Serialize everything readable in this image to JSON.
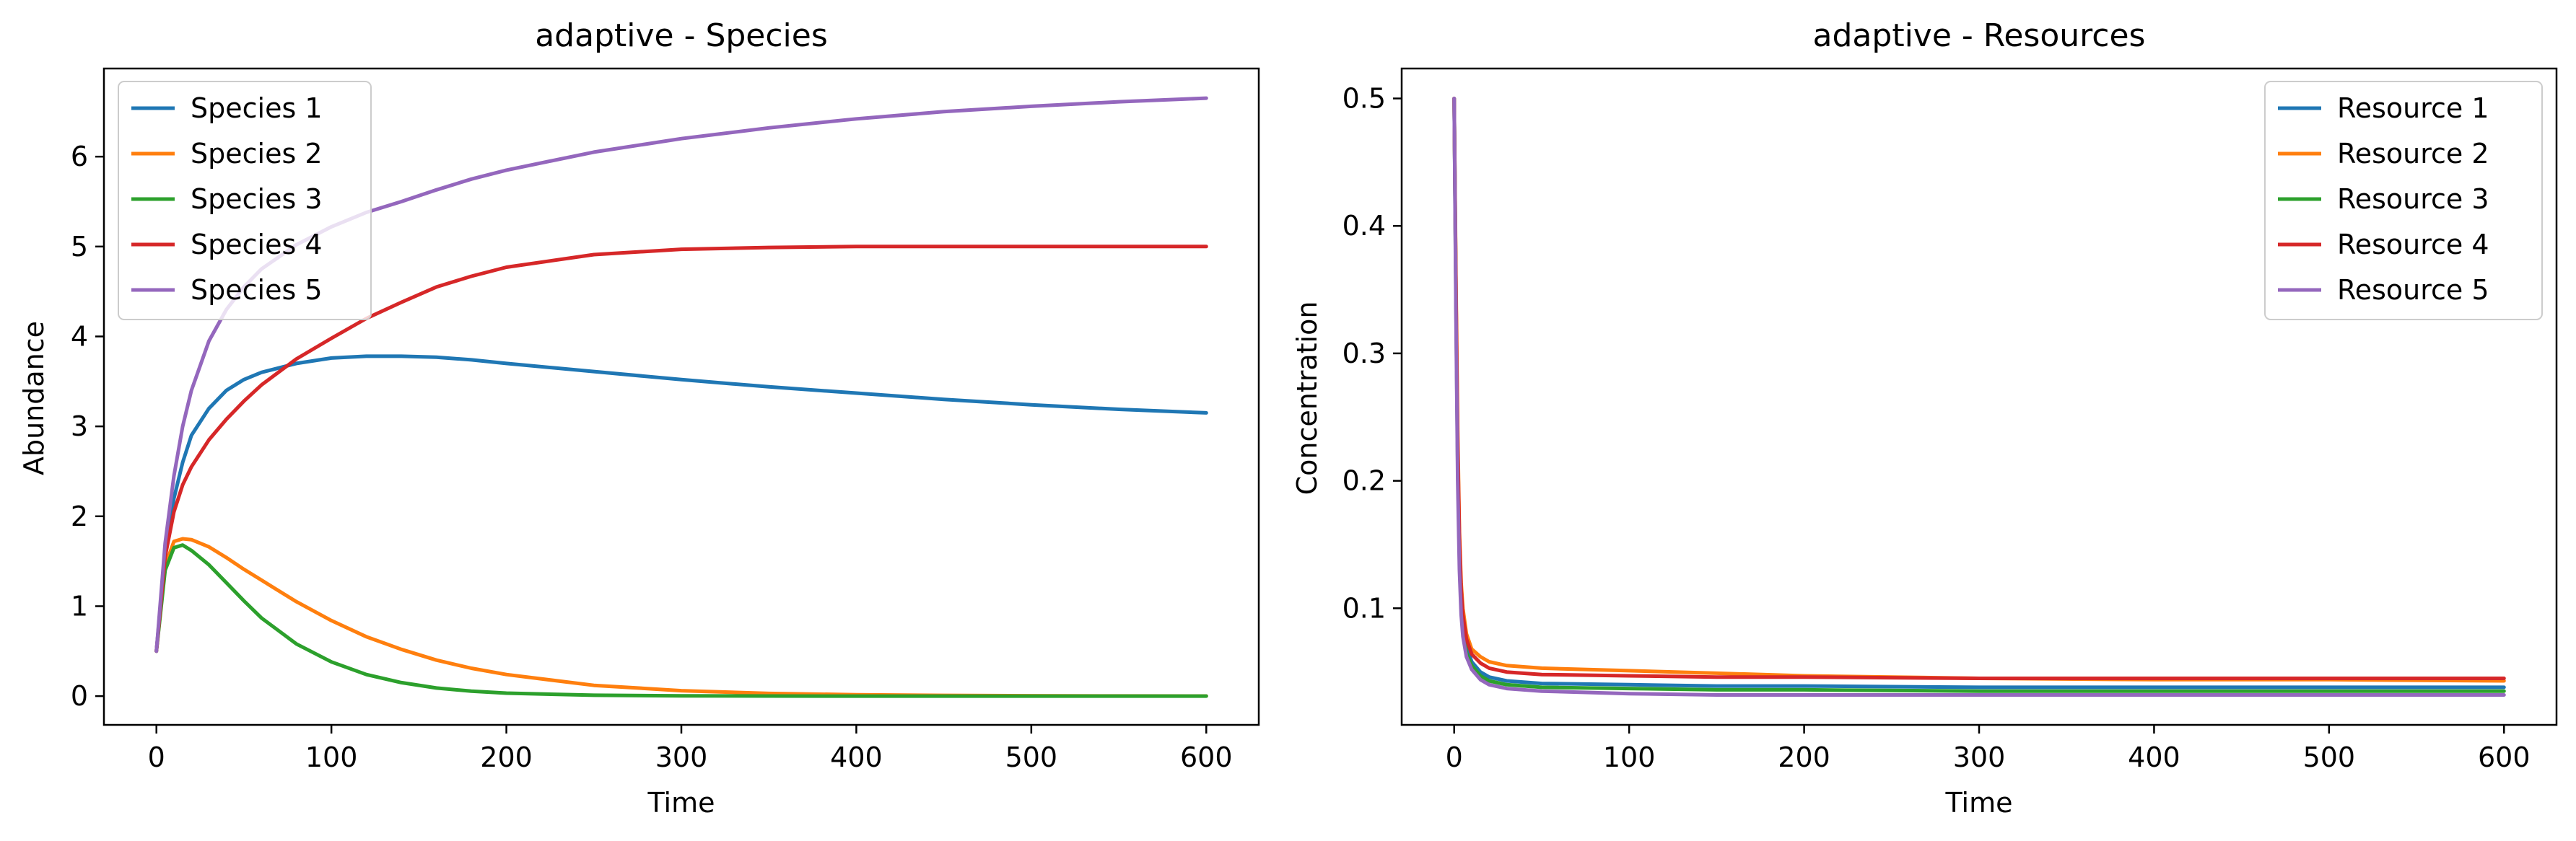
{
  "chart_data": [
    {
      "type": "line",
      "title": "adaptive - Species",
      "xlabel": "Time",
      "ylabel": "Abundance",
      "xlim": [
        -30,
        630
      ],
      "ylim": [
        -0.32,
        6.98
      ],
      "xticks": [
        0,
        100,
        200,
        300,
        400,
        500,
        600
      ],
      "yticks": [
        0,
        1,
        2,
        3,
        4,
        5,
        6
      ],
      "legend": "top-left",
      "grid": false,
      "x": [
        0,
        5,
        10,
        15,
        20,
        30,
        40,
        50,
        60,
        80,
        100,
        120,
        140,
        160,
        180,
        200,
        250,
        300,
        350,
        400,
        450,
        500,
        550,
        600
      ],
      "series": [
        {
          "name": "Species 1",
          "color": "#1f77b4",
          "values": [
            0.5,
            1.6,
            2.2,
            2.6,
            2.9,
            3.2,
            3.4,
            3.52,
            3.6,
            3.7,
            3.76,
            3.78,
            3.78,
            3.77,
            3.74,
            3.7,
            3.61,
            3.52,
            3.44,
            3.37,
            3.3,
            3.24,
            3.19,
            3.15
          ]
        },
        {
          "name": "Species 2",
          "color": "#ff7f0e",
          "values": [
            0.5,
            1.45,
            1.72,
            1.75,
            1.74,
            1.66,
            1.54,
            1.41,
            1.29,
            1.05,
            0.84,
            0.66,
            0.52,
            0.4,
            0.31,
            0.24,
            0.12,
            0.06,
            0.03,
            0.015,
            0.008,
            0.004,
            0.002,
            0.001
          ]
        },
        {
          "name": "Species 3",
          "color": "#2ca02c",
          "values": [
            0.5,
            1.4,
            1.65,
            1.68,
            1.62,
            1.46,
            1.26,
            1.06,
            0.87,
            0.58,
            0.38,
            0.24,
            0.15,
            0.09,
            0.055,
            0.033,
            0.01,
            0.003,
            0.001,
            0.0,
            0.0,
            0.0,
            0.0,
            0.0
          ]
        },
        {
          "name": "Species 4",
          "color": "#d62728",
          "values": [
            0.5,
            1.55,
            2.05,
            2.35,
            2.55,
            2.85,
            3.08,
            3.28,
            3.46,
            3.75,
            3.98,
            4.2,
            4.38,
            4.55,
            4.67,
            4.77,
            4.91,
            4.97,
            4.99,
            5.0,
            5.0,
            5.0,
            5.0,
            5.0
          ]
        },
        {
          "name": "Species 5",
          "color": "#9467bd",
          "values": [
            0.5,
            1.7,
            2.45,
            3.0,
            3.4,
            3.95,
            4.3,
            4.55,
            4.75,
            5.02,
            5.22,
            5.38,
            5.5,
            5.63,
            5.75,
            5.85,
            6.05,
            6.2,
            6.32,
            6.42,
            6.5,
            6.56,
            6.61,
            6.65
          ]
        }
      ]
    },
    {
      "type": "line",
      "title": "adaptive - Resources",
      "xlabel": "Time",
      "ylabel": "Concentration",
      "xlim": [
        -30,
        630
      ],
      "ylim": [
        0.0085,
        0.5235
      ],
      "xticks": [
        0,
        100,
        200,
        300,
        400,
        500,
        600
      ],
      "yticks": [
        0.1,
        0.2,
        0.3,
        0.4,
        0.5
      ],
      "legend": "top-right",
      "grid": false,
      "x": [
        0,
        1,
        2,
        3,
        4,
        5,
        7,
        10,
        15,
        20,
        30,
        50,
        100,
        150,
        200,
        300,
        400,
        500,
        600
      ],
      "series": [
        {
          "name": "Resource 1",
          "color": "#1f77b4",
          "values": [
            0.5,
            0.35,
            0.22,
            0.15,
            0.11,
            0.09,
            0.07,
            0.058,
            0.05,
            0.046,
            0.043,
            0.041,
            0.04,
            0.039,
            0.039,
            0.038,
            0.038,
            0.038,
            0.038
          ]
        },
        {
          "name": "Resource 2",
          "color": "#ff7f0e",
          "values": [
            0.5,
            0.36,
            0.24,
            0.16,
            0.12,
            0.1,
            0.08,
            0.068,
            0.062,
            0.058,
            0.055,
            0.053,
            0.051,
            0.049,
            0.047,
            0.045,
            0.044,
            0.044,
            0.043
          ]
        },
        {
          "name": "Resource 3",
          "color": "#2ca02c",
          "values": [
            0.5,
            0.34,
            0.21,
            0.14,
            0.1,
            0.082,
            0.065,
            0.055,
            0.047,
            0.043,
            0.04,
            0.038,
            0.037,
            0.036,
            0.036,
            0.035,
            0.035,
            0.035,
            0.035
          ]
        },
        {
          "name": "Resource 4",
          "color": "#d62728",
          "values": [
            0.5,
            0.35,
            0.23,
            0.155,
            0.115,
            0.095,
            0.076,
            0.064,
            0.057,
            0.053,
            0.05,
            0.048,
            0.047,
            0.046,
            0.046,
            0.045,
            0.045,
            0.045,
            0.045
          ]
        },
        {
          "name": "Resource 5",
          "color": "#9467bd",
          "values": [
            0.5,
            0.33,
            0.2,
            0.13,
            0.095,
            0.078,
            0.062,
            0.052,
            0.044,
            0.04,
            0.037,
            0.035,
            0.033,
            0.032,
            0.032,
            0.032,
            0.032,
            0.032,
            0.032
          ]
        }
      ]
    }
  ]
}
